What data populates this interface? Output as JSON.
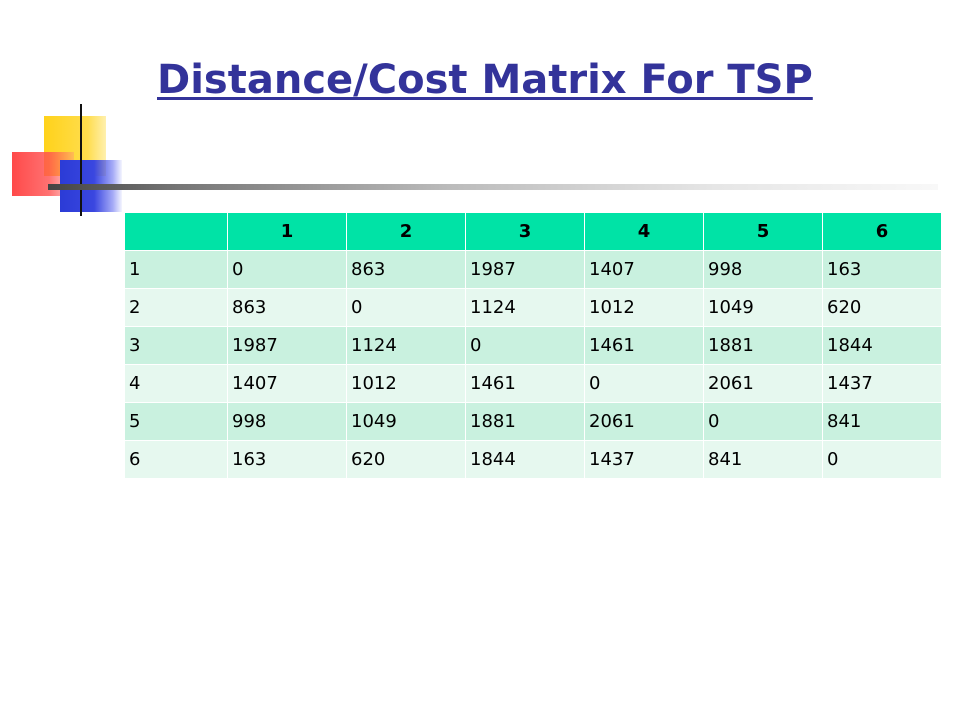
{
  "slide": {
    "title": "Distance/Cost Matrix For TSP"
  },
  "matrix": {
    "corner": "",
    "column_headers": [
      "1",
      "2",
      "3",
      "4",
      "5",
      "6"
    ],
    "rows": [
      {
        "label": "1",
        "values": [
          "0",
          "863",
          "1987",
          "1407",
          "998",
          "163"
        ]
      },
      {
        "label": "2",
        "values": [
          "863",
          "0",
          "1124",
          "1012",
          "1049",
          "620"
        ]
      },
      {
        "label": "3",
        "values": [
          "1987",
          "1124",
          "0",
          "1461",
          "1881",
          "1844"
        ]
      },
      {
        "label": "4",
        "values": [
          "1407",
          "1012",
          "1461",
          "0",
          "2061",
          "1437"
        ]
      },
      {
        "label": "5",
        "values": [
          "998",
          "1049",
          "1881",
          "2061",
          "0",
          "841"
        ]
      },
      {
        "label": "6",
        "values": [
          "163",
          "620",
          "1844",
          "1437",
          "841",
          "0"
        ]
      }
    ]
  },
  "colors": {
    "title": "#33339a",
    "header_bg": "#00e3a6",
    "row_odd_bg": "#c9f1df",
    "row_even_bg": "#e6f8ef"
  }
}
